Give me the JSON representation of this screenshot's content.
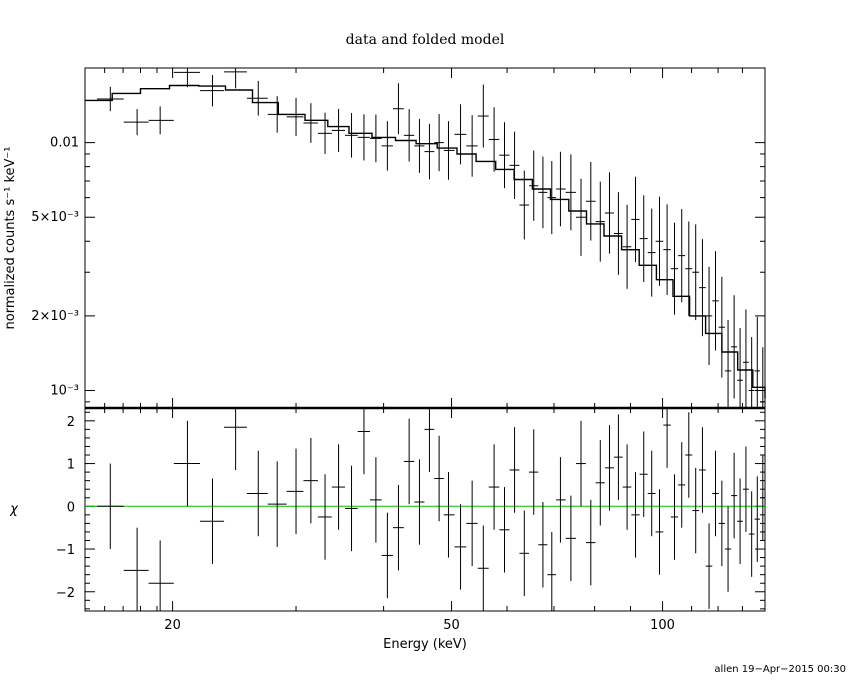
{
  "chart_data": [
    {
      "type": "line",
      "title": "data and folded model",
      "xlabel": "",
      "ylabel": "normalized counts s⁻¹ keV⁻¹",
      "x_scale": "log",
      "y_scale": "log",
      "xlim": [
        15,
        140
      ],
      "ylim": [
        0.00085,
        0.02
      ],
      "y_ticks": [
        {
          "value": 0.01,
          "label": "0.01"
        },
        {
          "value": 0.005,
          "label": "5×10⁻³"
        },
        {
          "value": 0.002,
          "label": "2×10⁻³"
        },
        {
          "value": 0.001,
          "label": "10⁻³"
        }
      ],
      "series": [
        {
          "kind": "model-step",
          "x": [
            15,
            16.4,
            18.0,
            19.8,
            21.8,
            23.8,
            26.0,
            28.3,
            30.9,
            33.3,
            35.7,
            38.5,
            41.6,
            44.5,
            47.7,
            50.9,
            54.2,
            57.8,
            61.4,
            65.2,
            69.2,
            73.5,
            77.9,
            82.5,
            87.4,
            92.6,
            98.0,
            103.5,
            109.3,
            115.2,
            121.5,
            128.0,
            134.5,
            140
          ],
          "y": [
            0.0148,
            0.0158,
            0.0165,
            0.017,
            0.0169,
            0.0163,
            0.0145,
            0.013,
            0.0123,
            0.0116,
            0.0109,
            0.0105,
            0.0102,
            0.0099,
            0.0095,
            0.009,
            0.0084,
            0.0078,
            0.0071,
            0.0065,
            0.0059,
            0.0053,
            0.0047,
            0.0042,
            0.0037,
            0.0032,
            0.0028,
            0.0024,
            0.002,
            0.0017,
            0.00143,
            0.00121,
            0.00103,
            0.00093
          ]
        },
        {
          "kind": "data-crosses",
          "x": [
            16.3,
            17.8,
            19.2,
            21.0,
            22.8,
            24.6,
            26.5,
            28.2,
            30.0,
            31.5,
            33.0,
            34.5,
            36.0,
            37.5,
            39.0,
            40.5,
            42.0,
            43.5,
            45.0,
            46.5,
            48.0,
            49.5,
            51.5,
            53.5,
            55.5,
            57.5,
            59.5,
            61.5,
            63.5,
            65.5,
            67.5,
            69.5,
            71.5,
            74.0,
            76.5,
            79.0,
            81.5,
            84.0,
            86.5,
            89.0,
            91.5,
            94.0,
            96.5,
            99.0,
            101.5,
            104.0,
            106.5,
            109.0,
            111.5,
            114.0,
            116.5,
            119.0,
            121.5,
            124.0,
            126.5,
            129.0,
            131.5,
            134.0,
            136.5,
            139.0
          ],
          "y": [
            0.015,
            0.0121,
            0.0123,
            0.0192,
            0.0162,
            0.0193,
            0.0151,
            0.013,
            0.0127,
            0.012,
            0.0109,
            0.0112,
            0.0107,
            0.0105,
            0.0104,
            0.0097,
            0.0137,
            0.0107,
            0.0097,
            0.0092,
            0.01,
            0.0093,
            0.0108,
            0.0097,
            0.0128,
            0.0103,
            0.0089,
            0.0081,
            0.0056,
            0.0067,
            0.0063,
            0.006,
            0.0065,
            0.0063,
            0.005,
            0.0058,
            0.0048,
            0.0052,
            0.0043,
            0.0038,
            0.0049,
            0.0041,
            0.0036,
            0.004,
            0.0037,
            0.0031,
            0.0035,
            0.0031,
            0.003,
            0.0026,
            0.002,
            0.0023,
            0.0018,
            0.0012,
            0.0015,
            0.0011,
            0.0013,
            0.001,
            0.0012,
            0.0009
          ]
        }
      ]
    },
    {
      "type": "scatter",
      "xlabel": "Energy (keV)",
      "ylabel": "χ",
      "x_scale": "log",
      "xlim": [
        15,
        140
      ],
      "ylim": [
        -2.45,
        2.3
      ],
      "x_ticks": [
        {
          "value": 20,
          "label": "20"
        },
        {
          "value": 50,
          "label": "50"
        },
        {
          "value": 100,
          "label": "100"
        }
      ],
      "y_ticks": [
        {
          "value": 2,
          "label": "2"
        },
        {
          "value": 1,
          "label": "1"
        },
        {
          "value": 0,
          "label": "0"
        },
        {
          "value": -1,
          "label": "−1"
        },
        {
          "value": -2,
          "label": "−2"
        }
      ],
      "zero_line_color": "#00c000",
      "series": [
        {
          "kind": "residual-crosses",
          "x": [
            16.3,
            17.8,
            19.2,
            21.0,
            22.8,
            24.6,
            26.5,
            28.2,
            30.0,
            31.5,
            33.0,
            34.5,
            36.0,
            37.5,
            39.0,
            40.5,
            42.0,
            43.5,
            45.0,
            46.5,
            48.0,
            49.5,
            51.5,
            53.5,
            55.5,
            57.5,
            59.5,
            61.5,
            63.5,
            65.5,
            67.5,
            69.5,
            71.5,
            74.0,
            76.5,
            79.0,
            81.5,
            84.0,
            86.5,
            89.0,
            91.5,
            94.0,
            96.5,
            99.0,
            101.5,
            104.0,
            106.5,
            109.0,
            111.5,
            114.0,
            116.5,
            119.0,
            121.5,
            124.0,
            126.5,
            129.0,
            131.5,
            134.0,
            136.5,
            139.0
          ],
          "y": [
            0.0,
            -1.5,
            -1.8,
            1.0,
            -0.35,
            1.85,
            0.3,
            0.05,
            0.35,
            0.6,
            -0.25,
            0.45,
            -0.05,
            1.75,
            0.15,
            -1.15,
            -0.5,
            1.05,
            0.1,
            1.8,
            0.65,
            -0.2,
            -0.95,
            -0.4,
            -1.45,
            0.45,
            -0.55,
            0.85,
            -1.1,
            0.8,
            -0.9,
            -1.6,
            0.15,
            -0.75,
            1.0,
            -0.85,
            0.55,
            0.9,
            1.15,
            0.45,
            -0.2,
            0.75,
            0.3,
            -0.6,
            1.9,
            -0.25,
            0.5,
            1.2,
            -0.1,
            0.85,
            -1.4,
            0.3,
            -0.4,
            -1.0,
            0.25,
            -0.35,
            0.4,
            -0.65,
            -0.3,
            0.2
          ]
        }
      ]
    }
  ],
  "footer": "allen 19−Apr−2015 00:30"
}
